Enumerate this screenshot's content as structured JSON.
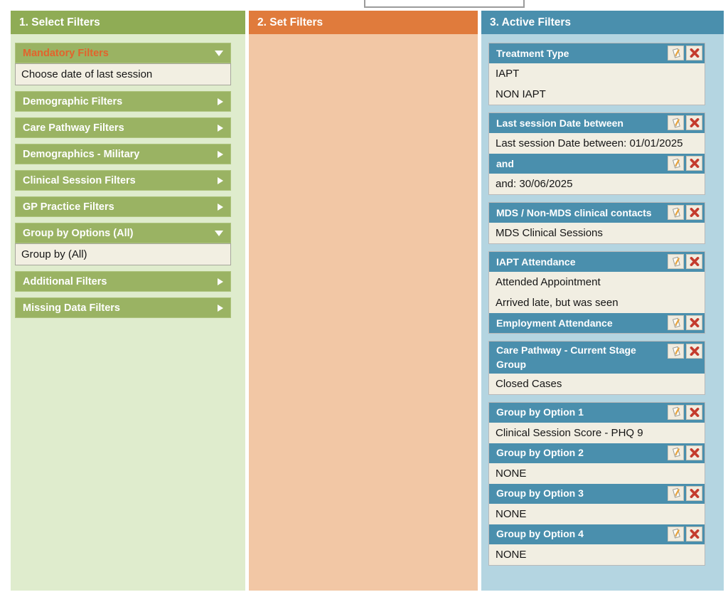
{
  "colors": {
    "col1_header_green": "#8fac55",
    "col1_bg": "#dfeccd",
    "accordion_bar_green": "#9ab363",
    "accordion_panel_bg": "#f2efe2",
    "mandatory_highlight_orange": "#e2632c",
    "col2_header_orange": "#e07b3c",
    "col2_bg": "#f2c7a5",
    "col3_header_blue": "#4a8fad",
    "col3_bg": "#b4d5e1",
    "card_header_blue": "#4a8fad",
    "card_body_cream": "#f1eee2",
    "delete_x_red": "#c43b2d",
    "pencil_orange": "#e8a33d"
  },
  "columns": {
    "select": {
      "title": "1. Select Filters",
      "items": [
        {
          "label": "Mandatory Filters",
          "expanded": true,
          "highlighted": true,
          "options": [
            "Choose date of last session"
          ]
        },
        {
          "label": "Demographic Filters",
          "expanded": false
        },
        {
          "label": "Care Pathway Filters",
          "expanded": false
        },
        {
          "label": "Demographics - Military",
          "expanded": false
        },
        {
          "label": "Clinical Session Filters",
          "expanded": false
        },
        {
          "label": "GP Practice Filters",
          "expanded": false
        },
        {
          "label": "Group by Options (All)",
          "expanded": true,
          "highlighted": false,
          "options": [
            "Group by (All)"
          ]
        },
        {
          "label": "Additional Filters",
          "expanded": false
        },
        {
          "label": "Missing Data Filters",
          "expanded": false
        }
      ]
    },
    "set": {
      "title": "2. Set Filters"
    },
    "active": {
      "title": "3. Active Filters",
      "header_button_icons": [
        "edit-icon",
        "delete-icon"
      ],
      "groups": [
        {
          "sections": [
            {
              "title": "Treatment Type",
              "values": [
                "IAPT",
                "NON IAPT"
              ]
            }
          ]
        },
        {
          "sections": [
            {
              "title": "Last session Date between",
              "values": [
                "Last session Date between: 01/01/2025"
              ]
            },
            {
              "title": "and",
              "values": [
                "and: 30/06/2025"
              ]
            }
          ]
        },
        {
          "sections": [
            {
              "title": "MDS / Non-MDS clinical contacts",
              "values": [
                "MDS Clinical Sessions"
              ]
            }
          ]
        },
        {
          "sections": [
            {
              "title": "IAPT Attendance",
              "values": [
                "Attended Appointment",
                "Arrived late, but was seen"
              ]
            },
            {
              "title": "Employment Attendance",
              "values": []
            }
          ]
        },
        {
          "sections": [
            {
              "title": "Care Pathway - Current Stage Group",
              "values": [
                "Closed Cases"
              ]
            }
          ]
        },
        {
          "sections": [
            {
              "title": "Group by Option 1",
              "values": [
                "Clinical Session Score - PHQ 9"
              ]
            },
            {
              "title": "Group by Option 2",
              "values": [
                "NONE"
              ]
            },
            {
              "title": "Group by Option 3",
              "values": [
                "NONE"
              ]
            },
            {
              "title": "Group by Option 4",
              "values": [
                "NONE"
              ]
            }
          ]
        }
      ]
    }
  }
}
